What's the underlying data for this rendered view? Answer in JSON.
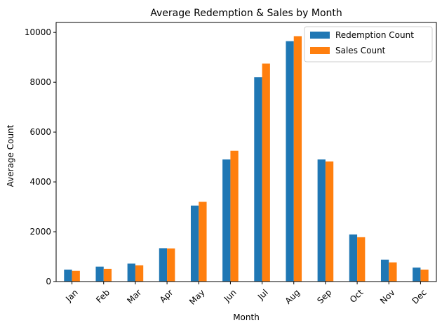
{
  "chart_data": {
    "type": "bar",
    "title": "Average Redemption & Sales by Month",
    "xlabel": "Month",
    "ylabel": "Average Count",
    "categories": [
      "Jan",
      "Feb",
      "Mar",
      "Apr",
      "May",
      "Jun",
      "Jul",
      "Aug",
      "Sep",
      "Oct",
      "Nov",
      "Dec"
    ],
    "series": [
      {
        "name": "Redemption Count",
        "color": "#1f77b4",
        "values": [
          480,
          600,
          720,
          1340,
          3050,
          4900,
          8200,
          9650,
          4900,
          1890,
          880,
          560
        ]
      },
      {
        "name": "Sales Count",
        "color": "#ff7f0e",
        "values": [
          430,
          510,
          650,
          1330,
          3200,
          5250,
          8750,
          9850,
          4820,
          1780,
          770,
          480
        ]
      }
    ],
    "ylim": [
      0,
      10400
    ],
    "yticks": [
      0,
      2000,
      4000,
      6000,
      8000,
      10000
    ],
    "grid": false,
    "legend_position": "top-right"
  }
}
